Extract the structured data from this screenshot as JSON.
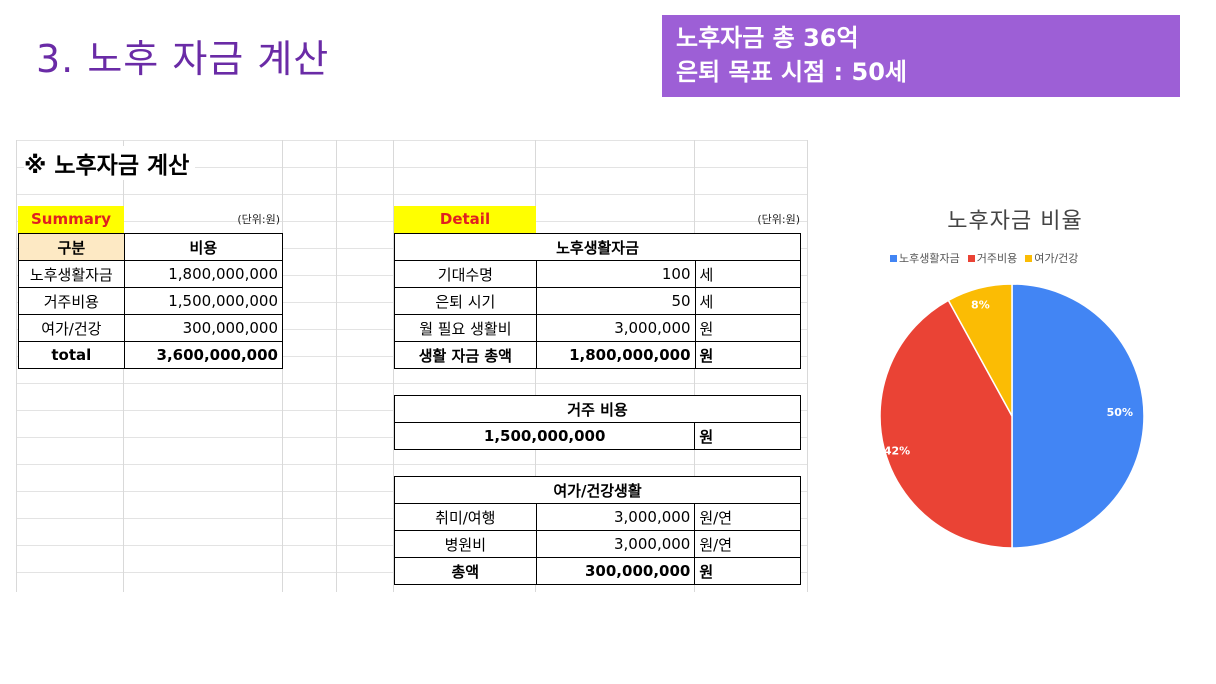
{
  "header": {
    "title": "3. 노후 자금 계산",
    "summary_line1": "노후자금 총 36억",
    "summary_line2": "은퇴 목표 시점 : 50세"
  },
  "sheet": {
    "title": "※ 노후자금 계산",
    "summary_tag": "Summary",
    "detail_tag": "Detail",
    "unit_note_left": "(단위:원)",
    "unit_note_right": "(단위:원)",
    "summary_table": {
      "headers": [
        "구분",
        "비용"
      ],
      "rows": [
        [
          "노후생활자금",
          "1,800,000,000"
        ],
        [
          "거주비용",
          "1,500,000,000"
        ],
        [
          "여가/건강",
          "300,000,000"
        ]
      ],
      "total_label": "total",
      "total_value": "3,600,000,000"
    },
    "living": {
      "header": "노후생활자금",
      "rows": [
        [
          "기대수명",
          "100",
          "세"
        ],
        [
          "은퇴 시기",
          "50",
          "세"
        ],
        [
          "월 필요 생활비",
          "3,000,000",
          "원"
        ]
      ],
      "total_label": "생활 자금 총액",
      "total_value": "1,800,000,000",
      "total_unit": "원"
    },
    "housing": {
      "header": "거주 비용",
      "value": "1,500,000,000",
      "unit": "원"
    },
    "leisure": {
      "header": "여가/건강생활",
      "rows": [
        [
          "취미/여행",
          "3,000,000",
          "원/연"
        ],
        [
          "병원비",
          "3,000,000",
          "원/연"
        ]
      ],
      "total_label": "총액",
      "total_value": "300,000,000",
      "total_unit": "원"
    }
  },
  "chart_data": {
    "type": "pie",
    "title": "노후자금 비율",
    "categories": [
      "노후생활자금",
      "거주비용",
      "여가/건강"
    ],
    "values": [
      50,
      42,
      8
    ],
    "labels": [
      "50%",
      "42%",
      "8%"
    ],
    "colors": [
      "#4285f4",
      "#ea4335",
      "#fbbc04"
    ],
    "legend": "top"
  }
}
